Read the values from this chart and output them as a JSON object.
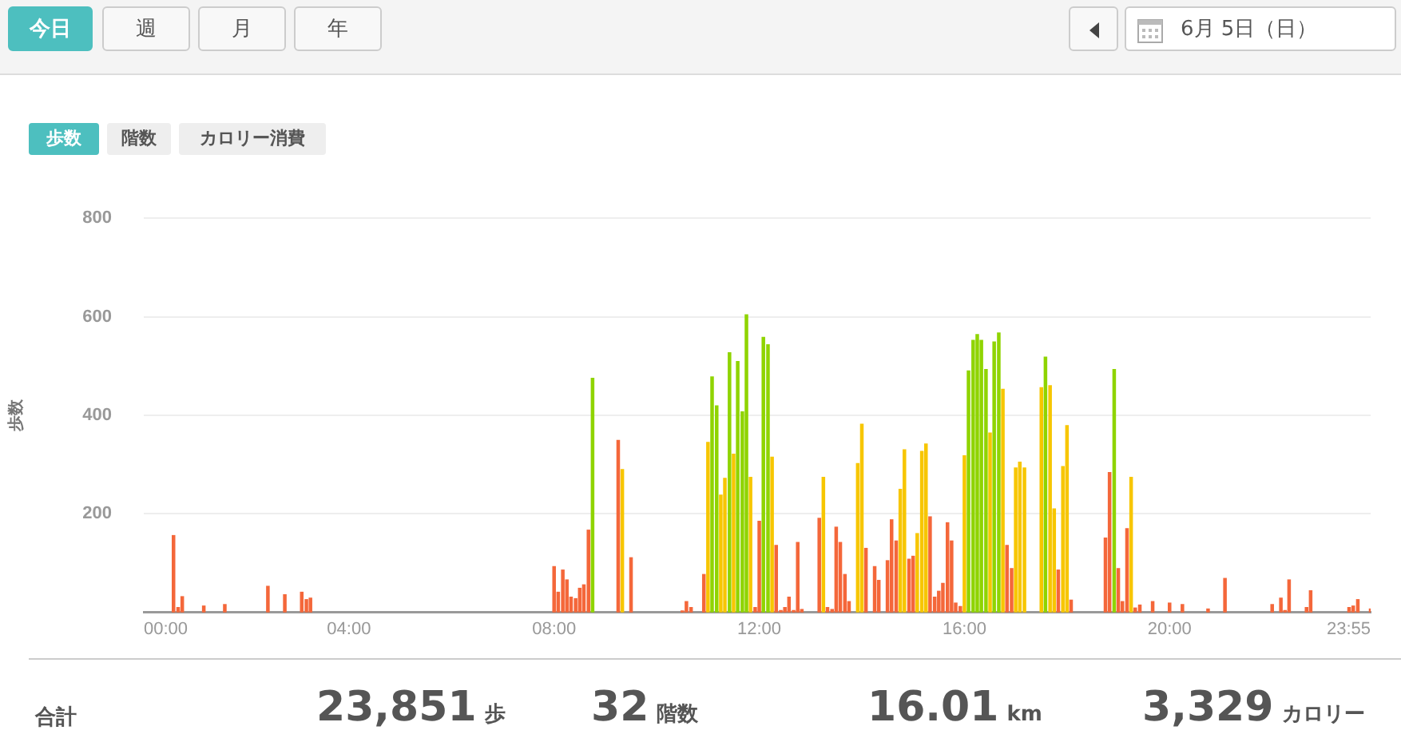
{
  "chart_data": {
    "type": "bar",
    "ylabel": "歩数",
    "xlim": [
      0,
      23.92
    ],
    "xticks": [
      {
        "value": 0,
        "label": "00:00"
      },
      {
        "value": 4,
        "label": "04:00"
      },
      {
        "value": 8,
        "label": "08:00"
      },
      {
        "value": 12,
        "label": "12:00"
      },
      {
        "value": 16,
        "label": "16:00"
      },
      {
        "value": 20,
        "label": "20:00"
      },
      {
        "value": 23.92,
        "label": "23:55"
      }
    ],
    "ylim": [
      0,
      800
    ],
    "yticks": [
      200,
      400,
      600,
      800
    ],
    "grid": "y",
    "legend": false,
    "series": [
      {
        "color": "#f4673a",
        "x": [
          0.58,
          0.67,
          0.75,
          1.17,
          1.58,
          2.42,
          2.75,
          3.08,
          3.17,
          3.25,
          8.0,
          8.08,
          8.17,
          8.25,
          8.33,
          8.42,
          8.5,
          8.58,
          8.67,
          9.25,
          9.5,
          10.5,
          10.58,
          10.67,
          10.92,
          11.92,
          12.0,
          12.33,
          12.42,
          12.5,
          12.58,
          12.67,
          12.75,
          12.83,
          13.17,
          13.33,
          13.42,
          13.5,
          13.58,
          13.67,
          13.75,
          14.08,
          14.25,
          14.33,
          14.5,
          14.58,
          14.67,
          14.92,
          15.0,
          15.33,
          15.42,
          15.5,
          15.58,
          15.67,
          15.75,
          15.83,
          15.92,
          16.83,
          16.92,
          17.83,
          18.08,
          18.75,
          18.83,
          19.0,
          19.08,
          19.17,
          19.33,
          19.42,
          19.67,
          20.0,
          20.25,
          20.75,
          21.08,
          22.0,
          22.17,
          22.25,
          22.33,
          22.67,
          22.75,
          23.5,
          23.58,
          23.67,
          23.92
        ],
        "values": [
          156,
          10,
          32,
          13,
          16,
          53,
          36,
          41,
          26,
          29,
          93,
          41,
          86,
          66,
          31,
          28,
          49,
          56,
          167,
          349,
          111,
          3,
          22,
          10,
          77,
          10,
          185,
          136,
          4,
          10,
          31,
          4,
          142,
          6,
          191,
          10,
          6,
          173,
          142,
          77,
          22,
          130,
          93,
          65,
          105,
          188,
          145,
          108,
          114,
          194,
          31,
          43,
          59,
          182,
          145,
          19,
          12,
          136,
          89,
          86,
          25,
          151,
          284,
          89,
          22,
          170,
          9,
          15,
          22,
          19,
          16,
          7,
          69,
          16,
          29,
          4,
          66,
          10,
          44,
          10,
          13,
          26,
          7
        ]
      },
      {
        "color": "#f7c600",
        "x": [
          9.33,
          11.0,
          11.25,
          11.33,
          11.5,
          11.83,
          12.25,
          13.25,
          13.92,
          14.0,
          14.75,
          14.83,
          15.08,
          15.17,
          15.25,
          16.0,
          16.5,
          16.75,
          17.0,
          17.08,
          17.17,
          17.5,
          17.67,
          17.75,
          17.92,
          18.0,
          19.25
        ],
        "values": [
          290,
          345,
          238,
          272,
          321,
          274,
          315,
          274,
          302,
          382,
          250,
          330,
          160,
          327,
          342,
          318,
          364,
          453,
          293,
          305,
          293,
          456,
          460,
          210,
          296,
          379,
          274
        ]
      },
      {
        "color": "#8fd400",
        "x": [
          8.75,
          11.08,
          11.17,
          11.42,
          11.58,
          11.67,
          11.75,
          12.08,
          12.17,
          16.08,
          16.17,
          16.25,
          16.33,
          16.42,
          16.58,
          16.67,
          17.58,
          18.92
        ],
        "values": [
          475,
          478,
          419,
          527,
          509,
          407,
          604,
          558,
          543,
          490,
          552,
          564,
          552,
          493,
          549,
          567,
          518,
          493
        ]
      }
    ],
    "annotations": [
      "今日",
      "週",
      "月",
      "年",
      "6月 5日（日）",
      "歩数",
      "階数",
      "カロリー消費",
      "合計",
      "23,851",
      "歩",
      "32",
      "階数",
      "16.01",
      "km",
      "3,329",
      "カロリー"
    ]
  }
}
